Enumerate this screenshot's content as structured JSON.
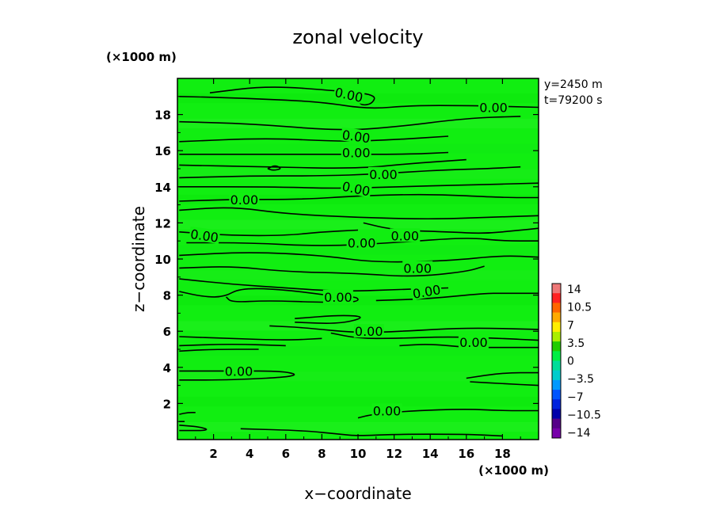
{
  "chart_data": {
    "type": "contour",
    "title": "zonal velocity",
    "xlabel": "x−coordinate",
    "ylabel": "z−coordinate",
    "x_unit": "(×1000 m)",
    "y_unit": "(×1000 m)",
    "annotations": [
      "y=2450 m",
      "t=79200 s"
    ],
    "xlim": [
      0,
      20
    ],
    "ylim": [
      0,
      20
    ],
    "x_ticks": [
      2,
      4,
      6,
      8,
      10,
      12,
      14,
      16,
      18
    ],
    "y_ticks": [
      2,
      4,
      6,
      8,
      10,
      12,
      14,
      16,
      18
    ],
    "x_tick_labels": [
      "2",
      "4",
      "6",
      "8",
      "10",
      "12",
      "14",
      "16",
      "18"
    ],
    "y_tick_labels": [
      "2",
      "4",
      "6",
      "8",
      "10",
      "12",
      "14",
      "16",
      "18"
    ],
    "field_color": "#11ee11",
    "contour_color": "#000000",
    "colorbar": {
      "labels": [
        "14",
        "10.5",
        "7",
        "3.5",
        "0",
        "−3.5",
        "−7",
        "−10.5",
        "−14"
      ],
      "colors": [
        "#ee7777",
        "#ff2222",
        "#ff6600",
        "#ffaa00",
        "#ffee00",
        "#aaee00",
        "#22cc00",
        "#00ee44",
        "#00dd99",
        "#00cccc",
        "#0099ff",
        "#0055ff",
        "#0022dd",
        "#0000aa",
        "#550088",
        "#7700aa"
      ]
    },
    "contours": [
      {
        "label": "0.00",
        "points": [
          [
            1.8,
            19.2
          ],
          [
            5,
            19.6
          ],
          [
            9,
            19.3
          ],
          [
            11,
            19.1
          ],
          [
            10.8,
            18.6
          ],
          [
            10.2,
            18.5
          ],
          [
            10,
            18.8
          ]
        ]
      },
      {
        "label": "0.00",
        "points": [
          [
            0.1,
            19
          ],
          [
            4,
            18.9
          ],
          [
            8,
            18.7
          ],
          [
            10.5,
            18.3
          ],
          [
            13,
            18.5
          ],
          [
            16,
            18.5
          ],
          [
            20,
            18.4
          ]
        ]
      },
      {
        "label": "0.00",
        "points": [
          [
            0.1,
            17.6
          ],
          [
            4,
            17.5
          ],
          [
            9,
            17.1
          ],
          [
            12,
            17.3
          ],
          [
            16,
            17.8
          ],
          [
            19,
            17.9
          ]
        ]
      },
      {
        "label": "0.00",
        "points": [
          [
            0.1,
            16.5
          ],
          [
            5,
            16.7
          ],
          [
            9,
            16.5
          ],
          [
            12,
            16.6
          ],
          [
            15,
            16.8
          ]
        ]
      },
      {
        "label": "0.00",
        "points": [
          [
            0.1,
            15.8
          ],
          [
            4,
            15.8
          ],
          [
            8,
            15.8
          ],
          [
            13,
            15.8
          ],
          [
            15,
            15.9
          ]
        ]
      },
      {
        "label": "0.00",
        "points": [
          [
            0.1,
            15.2
          ],
          [
            5,
            15.1
          ],
          [
            10,
            15.0
          ],
          [
            13,
            15.3
          ],
          [
            16,
            15.5
          ]
        ]
      },
      {
        "label": "0.00",
        "points": [
          [
            0.1,
            14.5
          ],
          [
            4,
            14.6
          ],
          [
            8,
            14.6
          ],
          [
            11,
            14.7
          ],
          [
            14,
            14.9
          ],
          [
            17,
            15.0
          ],
          [
            19,
            15.1
          ]
        ]
      },
      {
        "label": "0.00",
        "points": [
          [
            0.1,
            14
          ],
          [
            5,
            14
          ],
          [
            9,
            13.9
          ],
          [
            12,
            14
          ],
          [
            16,
            14.1
          ],
          [
            20,
            14.2
          ]
        ]
      },
      {
        "label": "0.00",
        "points": [
          [
            0.1,
            13.2
          ],
          [
            3,
            13.3
          ],
          [
            7,
            13.3
          ],
          [
            10,
            13.5
          ],
          [
            14,
            13.6
          ],
          [
            18,
            13.4
          ],
          [
            20,
            13.4
          ]
        ]
      },
      {
        "label": "0.00",
        "points": [
          [
            0.1,
            12.7
          ],
          [
            3,
            12.9
          ],
          [
            6,
            12.5
          ],
          [
            10,
            12.3
          ],
          [
            14,
            12.2
          ],
          [
            17,
            12.3
          ],
          [
            20,
            12.4
          ]
        ]
      },
      {
        "label": "0.00",
        "points": [
          [
            10.3,
            12.0
          ],
          [
            12,
            11.6
          ],
          [
            15,
            11.5
          ],
          [
            17,
            11.4
          ],
          [
            19,
            11.6
          ],
          [
            20,
            11.7
          ]
        ]
      },
      {
        "label": "0.00",
        "points": [
          [
            0.1,
            11.5
          ],
          [
            3,
            11.3
          ],
          [
            6,
            11.3
          ],
          [
            8,
            11.5
          ],
          [
            10,
            11.6
          ]
        ]
      },
      {
        "label": "0.00",
        "points": [
          [
            0.5,
            10.9
          ],
          [
            4,
            10.9
          ],
          [
            8,
            10.7
          ],
          [
            12,
            10.9
          ],
          [
            16,
            11.2
          ],
          [
            18,
            11.0
          ],
          [
            20,
            11.0
          ]
        ]
      },
      {
        "label": "0.00",
        "points": [
          [
            0.1,
            10.2
          ],
          [
            4,
            10.4
          ],
          [
            8,
            10.2
          ],
          [
            11,
            9.8
          ],
          [
            15,
            9.9
          ],
          [
            18,
            10.2
          ],
          [
            20,
            10.1
          ]
        ]
      },
      {
        "label": "0.00",
        "points": [
          [
            0.1,
            9.5
          ],
          [
            3,
            9.6
          ],
          [
            6,
            9.3
          ],
          [
            10,
            9.2
          ],
          [
            13,
            9.0
          ],
          [
            16,
            9.3
          ],
          [
            17,
            9.6
          ]
        ]
      },
      {
        "label": "0.00",
        "points": [
          [
            0.1,
            8.9
          ],
          [
            3,
            8.6
          ],
          [
            6,
            8.4
          ],
          [
            9,
            8.2
          ],
          [
            12,
            8.3
          ],
          [
            15,
            8.4
          ]
        ]
      },
      {
        "label": "0.00",
        "points": [
          [
            0.1,
            8.2
          ],
          [
            1.5,
            7.9
          ],
          [
            2.6,
            7.9
          ],
          [
            3.5,
            8.4
          ],
          [
            6,
            8.3
          ],
          [
            9,
            7.9
          ],
          [
            10,
            7.9
          ],
          [
            10,
            7.6
          ],
          [
            8,
            7.6
          ],
          [
            5,
            7.7
          ],
          [
            3,
            7.6
          ],
          [
            2.7,
            7.9
          ]
        ]
      },
      {
        "label": "0.00",
        "points": [
          [
            11,
            7.7
          ],
          [
            14,
            7.8
          ],
          [
            17,
            8.1
          ],
          [
            18,
            8.1
          ],
          [
            20,
            8.1
          ]
        ]
      },
      {
        "label": "0.00",
        "points": [
          [
            6.5,
            6.7
          ],
          [
            9,
            6.9
          ],
          [
            10.5,
            6.8
          ],
          [
            9,
            6.4
          ],
          [
            6.5,
            6.5
          ]
        ]
      },
      {
        "label": "0.00",
        "points": [
          [
            5.1,
            6.3
          ],
          [
            7,
            6.2
          ],
          [
            10,
            5.9
          ],
          [
            12.5,
            6.0
          ],
          [
            16,
            6.2
          ],
          [
            20,
            6.1
          ]
        ]
      },
      {
        "label": "0.00",
        "points": [
          [
            8.5,
            5.9
          ],
          [
            10,
            5.6
          ],
          [
            12,
            5.6
          ],
          [
            15,
            5.7
          ],
          [
            18,
            5.6
          ],
          [
            20,
            5.5
          ]
        ]
      },
      {
        "label": "0.00",
        "points": [
          [
            0.1,
            5.7
          ],
          [
            3,
            5.6
          ],
          [
            6,
            5.5
          ],
          [
            8,
            5.6
          ]
        ]
      },
      {
        "label": "0.00",
        "points": [
          [
            0.1,
            5.2
          ],
          [
            3,
            5.3
          ],
          [
            6,
            5.2
          ]
        ]
      },
      {
        "label": "0.00",
        "points": [
          [
            0.1,
            4.9
          ],
          [
            2,
            5.0
          ],
          [
            4.5,
            5.0
          ]
        ]
      },
      {
        "label": "0.00",
        "points": [
          [
            12.3,
            5.2
          ],
          [
            14,
            5.3
          ],
          [
            16,
            5.1
          ],
          [
            18,
            5.1
          ],
          [
            20,
            5.1
          ]
        ]
      },
      {
        "label": "0.00",
        "points": [
          [
            0.1,
            3.8
          ],
          [
            3,
            3.8
          ],
          [
            6,
            3.8
          ],
          [
            6.8,
            3.5
          ],
          [
            3,
            3.3
          ],
          [
            0.1,
            3.3
          ]
        ]
      },
      {
        "label": "0.00",
        "points": [
          [
            16,
            3.4
          ],
          [
            18,
            3.7
          ],
          [
            20,
            3.7
          ]
        ]
      },
      {
        "label": "0.00",
        "points": [
          [
            16.2,
            3.2
          ],
          [
            18,
            3.1
          ],
          [
            20,
            3.0
          ]
        ]
      },
      {
        "label": "0.00",
        "points": [
          [
            10,
            1.2
          ],
          [
            10.8,
            1.4
          ],
          [
            13,
            1.6
          ],
          [
            16,
            1.7
          ],
          [
            18,
            1.6
          ],
          [
            20,
            1.6
          ]
        ]
      },
      {
        "label": "0.00",
        "points": [
          [
            0.1,
            1.4
          ],
          [
            0.6,
            1.5
          ],
          [
            1,
            1.5
          ]
        ]
      },
      {
        "label": "0.00",
        "points": [
          [
            0.1,
            1.0
          ],
          [
            0.4,
            1.0
          ]
        ]
      },
      {
        "label": "0.00",
        "points": [
          [
            0.1,
            0.8
          ],
          [
            1.3,
            0.7
          ],
          [
            1.8,
            0.5
          ],
          [
            0.1,
            0.5
          ]
        ]
      },
      {
        "label": "0.00",
        "points": [
          [
            3.5,
            0.6
          ],
          [
            7,
            0.5
          ],
          [
            9,
            0.3
          ],
          [
            10,
            0.2
          ],
          [
            12,
            0.3
          ],
          [
            16,
            0.3
          ],
          [
            18,
            0.2
          ]
        ]
      },
      {
        "label": "0.00",
        "points": [
          [
            5,
            15.0
          ],
          [
            5.4,
            15.2
          ],
          [
            5.8,
            15.0
          ],
          [
            5.3,
            14.9
          ],
          [
            5,
            15.0
          ]
        ]
      }
    ],
    "contour_labels": [
      {
        "text": "0.00",
        "x": 9.5,
        "y": 19.1,
        "angle": 12
      },
      {
        "text": "0.00",
        "x": 17.5,
        "y": 18.4,
        "angle": 0
      },
      {
        "text": "0.00",
        "x": 9.9,
        "y": 16.8,
        "angle": 8
      },
      {
        "text": "0.00",
        "x": 9.9,
        "y": 15.9,
        "angle": 0
      },
      {
        "text": "0.00",
        "x": 11.4,
        "y": 14.7,
        "angle": 0
      },
      {
        "text": "0.00",
        "x": 9.9,
        "y": 13.9,
        "angle": 12
      },
      {
        "text": "0.00",
        "x": 3.7,
        "y": 13.3,
        "angle": 0
      },
      {
        "text": "0.00",
        "x": 1.5,
        "y": 11.3,
        "angle": 8
      },
      {
        "text": "0.00",
        "x": 12.6,
        "y": 11.3,
        "angle": 0
      },
      {
        "text": "0.00",
        "x": 10.2,
        "y": 10.9,
        "angle": 0
      },
      {
        "text": "0.00",
        "x": 13.3,
        "y": 9.5,
        "angle": 0
      },
      {
        "text": "0.00",
        "x": 8.9,
        "y": 7.9,
        "angle": 0
      },
      {
        "text": "0.00",
        "x": 13.8,
        "y": 8.2,
        "angle": -10
      },
      {
        "text": "0.00",
        "x": 10.6,
        "y": 6.0,
        "angle": 0
      },
      {
        "text": "0.00",
        "x": 16.4,
        "y": 5.4,
        "angle": 0
      },
      {
        "text": "0.00",
        "x": 3.4,
        "y": 3.8,
        "angle": 0
      },
      {
        "text": "0.00",
        "x": 11.6,
        "y": 1.6,
        "angle": 0
      }
    ]
  }
}
